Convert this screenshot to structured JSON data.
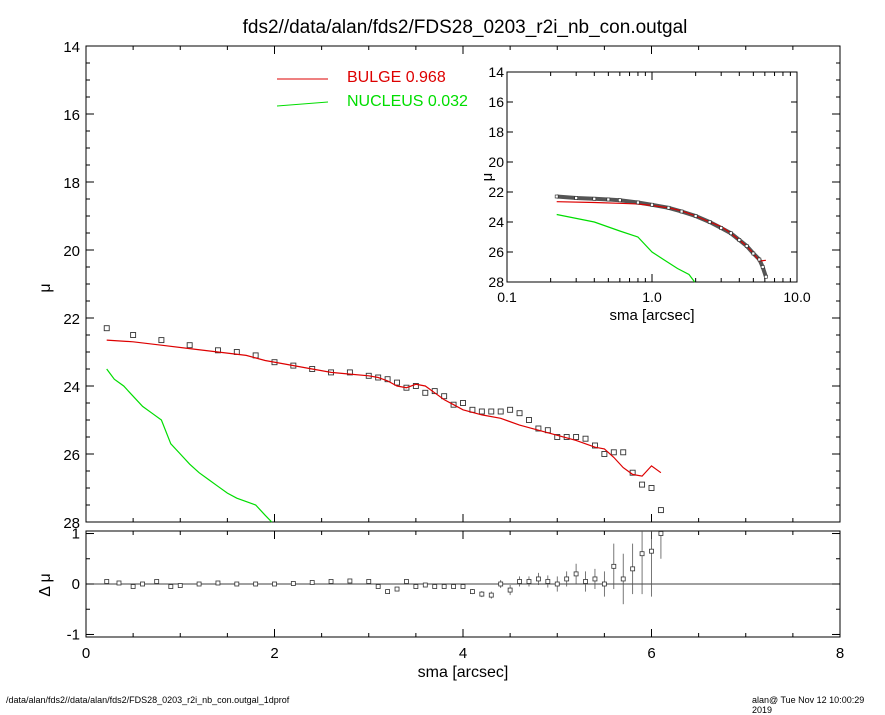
{
  "title": "fds2//data/alan/fds2/FDS28_0203_r2i_nb_con.outgal",
  "footer": {
    "left": "/data/alan/fds2//data/alan/fds2/FDS28_0203_r2i_nb_con.outgal_1dprof",
    "right": "alan@  Tue Nov 12 10:00:29 2019"
  },
  "colors": {
    "bulge": "#dd0000",
    "nucleus": "#00dd00",
    "data": "#000000"
  },
  "chart_data": [
    {
      "type": "scatter",
      "panel": "main",
      "xlabel": "",
      "ylabel": "μ",
      "xlim": [
        0,
        8
      ],
      "ylim": [
        28,
        14
      ],
      "y_inverted": true,
      "xticks": [
        0,
        2,
        4,
        6,
        8
      ],
      "yticks": [
        14,
        16,
        18,
        20,
        22,
        24,
        26,
        28
      ],
      "legend": [
        {
          "name": "BULGE",
          "value": "0.968"
        },
        {
          "name": "NUCLEUS",
          "value": "0.032"
        }
      ],
      "series": [
        {
          "name": "data",
          "x": [
            0.22,
            0.5,
            0.8,
            1.1,
            1.4,
            1.6,
            1.8,
            2.0,
            2.2,
            2.4,
            2.6,
            2.8,
            3.0,
            3.1,
            3.2,
            3.3,
            3.4,
            3.5,
            3.6,
            3.7,
            3.8,
            3.9,
            4.0,
            4.1,
            4.2,
            4.3,
            4.4,
            4.5,
            4.6,
            4.7,
            4.8,
            4.9,
            5.0,
            5.1,
            5.2,
            5.3,
            5.4,
            5.5,
            5.6,
            5.7,
            5.8,
            5.9,
            6.0,
            6.1
          ],
          "y": [
            22.3,
            22.5,
            22.65,
            22.8,
            22.95,
            23.0,
            23.1,
            23.3,
            23.4,
            23.5,
            23.6,
            23.6,
            23.7,
            23.75,
            23.8,
            23.9,
            24.05,
            24.0,
            24.2,
            24.15,
            24.3,
            24.55,
            24.5,
            24.7,
            24.75,
            24.75,
            24.75,
            24.7,
            24.8,
            25.0,
            25.25,
            25.3,
            25.5,
            25.5,
            25.5,
            25.55,
            25.75,
            26.0,
            25.95,
            25.95,
            26.55,
            26.9,
            27.0,
            27.65
          ]
        },
        {
          "name": "BULGE",
          "x": [
            0.22,
            0.5,
            0.8,
            1.1,
            1.4,
            1.7,
            1.9,
            2.1,
            2.4,
            2.6,
            2.8,
            3.0,
            3.1,
            3.2,
            3.3,
            3.4,
            3.5,
            3.6,
            3.7,
            3.8,
            3.9,
            4.0,
            4.2,
            4.4,
            4.6,
            4.8,
            5.0,
            5.2,
            5.4,
            5.5,
            5.6,
            5.7,
            5.8,
            5.9,
            6.0,
            6.1
          ],
          "y": [
            22.65,
            22.7,
            22.8,
            22.9,
            23.0,
            23.1,
            23.25,
            23.35,
            23.5,
            23.6,
            23.65,
            23.7,
            23.75,
            23.85,
            24.0,
            24.05,
            23.95,
            24.0,
            24.2,
            24.4,
            24.55,
            24.7,
            24.85,
            24.95,
            25.15,
            25.3,
            25.45,
            25.6,
            25.8,
            25.85,
            26.1,
            26.4,
            26.6,
            26.65,
            26.35,
            26.55
          ]
        },
        {
          "name": "NUCLEUS",
          "x": [
            0.22,
            0.3,
            0.4,
            0.5,
            0.6,
            0.7,
            0.8,
            0.9,
            1.0,
            1.1,
            1.2,
            1.3,
            1.4,
            1.5,
            1.6,
            1.7,
            1.8,
            1.9,
            1.97
          ],
          "y": [
            23.5,
            23.8,
            24.0,
            24.3,
            24.6,
            24.8,
            25.0,
            25.7,
            26.0,
            26.3,
            26.55,
            26.75,
            26.95,
            27.15,
            27.3,
            27.4,
            27.5,
            27.8,
            28.0
          ]
        }
      ]
    },
    {
      "type": "scatter",
      "panel": "residual",
      "xlabel": "sma [arcsec]",
      "ylabel": "Δ μ",
      "xlim": [
        0,
        8
      ],
      "ylim": [
        -1.05,
        1.05
      ],
      "xticks": [
        0,
        2,
        4,
        6,
        8
      ],
      "yticks": [
        -1,
        0,
        1
      ],
      "series": [
        {
          "name": "residual",
          "x": [
            0.22,
            0.35,
            0.5,
            0.6,
            0.75,
            0.9,
            1.0,
            1.2,
            1.4,
            1.6,
            1.8,
            2.0,
            2.2,
            2.4,
            2.6,
            2.8,
            3.0,
            3.1,
            3.2,
            3.3,
            3.4,
            3.5,
            3.6,
            3.7,
            3.8,
            3.9,
            4.0,
            4.1,
            4.2,
            4.3,
            4.4,
            4.5,
            4.6,
            4.7,
            4.8,
            4.9,
            5.0,
            5.1,
            5.2,
            5.3,
            5.4,
            5.5,
            5.6,
            5.7,
            5.8,
            5.9,
            6.0,
            6.1
          ],
          "y": [
            0.05,
            0.02,
            -0.05,
            0.0,
            0.05,
            -0.05,
            -0.03,
            0.0,
            0.02,
            0.0,
            0.0,
            0.0,
            0.01,
            0.03,
            0.05,
            0.06,
            0.05,
            -0.05,
            -0.15,
            -0.1,
            0.05,
            -0.05,
            -0.02,
            -0.05,
            -0.05,
            -0.05,
            -0.05,
            -0.15,
            -0.2,
            -0.22,
            0.0,
            -0.12,
            0.05,
            0.05,
            0.1,
            0.05,
            0.0,
            0.1,
            0.2,
            0.05,
            0.1,
            0.0,
            0.35,
            0.1,
            0.3,
            0.6,
            0.65,
            1.0
          ],
          "err": [
            0.01,
            0.01,
            0.01,
            0.01,
            0.01,
            0.01,
            0.01,
            0.01,
            0.01,
            0.01,
            0.01,
            0.01,
            0.01,
            0.01,
            0.01,
            0.01,
            0.02,
            0.02,
            0.03,
            0.03,
            0.03,
            0.03,
            0.03,
            0.03,
            0.04,
            0.04,
            0.04,
            0.05,
            0.06,
            0.07,
            0.08,
            0.1,
            0.1,
            0.1,
            0.12,
            0.12,
            0.15,
            0.15,
            0.2,
            0.2,
            0.2,
            0.25,
            0.45,
            0.5,
            0.5,
            0.8,
            0.9,
            0.5
          ]
        }
      ]
    },
    {
      "type": "scatter",
      "panel": "inset",
      "xlabel": "sma [arcsec]",
      "ylabel": "μ",
      "xscale": "log",
      "xlim": [
        0.1,
        10.0
      ],
      "ylim": [
        28,
        14
      ],
      "y_inverted": true,
      "xticks": [
        "0.1",
        "1.0",
        "10.0"
      ],
      "yticks": [
        14,
        16,
        18,
        20,
        22,
        24,
        26,
        28
      ],
      "series": [
        {
          "name": "data",
          "x": [
            0.22,
            0.3,
            0.4,
            0.5,
            0.6,
            0.8,
            1.0,
            1.3,
            1.6,
            2.0,
            2.5,
            3.0,
            3.5,
            4.0,
            4.5,
            5.0,
            5.5,
            5.8,
            6.1
          ],
          "y": [
            22.3,
            22.4,
            22.45,
            22.5,
            22.55,
            22.7,
            22.85,
            23.05,
            23.3,
            23.6,
            24.0,
            24.4,
            24.75,
            25.2,
            25.6,
            26.1,
            26.5,
            27.0,
            27.65
          ]
        },
        {
          "name": "BULGE",
          "x": [
            0.22,
            0.4,
            0.6,
            0.8,
            1.0,
            1.3,
            1.6,
            2.0,
            2.5,
            3.0,
            3.5,
            4.0,
            4.5,
            5.0,
            5.5,
            6.1
          ],
          "y": [
            22.65,
            22.7,
            22.75,
            22.8,
            22.9,
            23.05,
            23.25,
            23.6,
            24.0,
            24.3,
            24.75,
            25.2,
            25.6,
            26.1,
            26.6,
            26.55
          ]
        },
        {
          "name": "NUCLEUS",
          "x": [
            0.22,
            0.4,
            0.6,
            0.8,
            1.0,
            1.2,
            1.5,
            1.8,
            1.97
          ],
          "y": [
            23.5,
            24.0,
            24.6,
            25.0,
            26.0,
            26.5,
            27.1,
            27.5,
            28.0
          ]
        }
      ]
    }
  ]
}
